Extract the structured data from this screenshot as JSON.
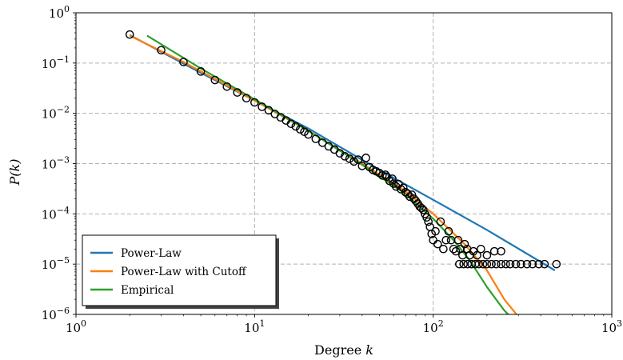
{
  "chart_data": {
    "type": "scatter",
    "xlabel": "Degree",
    "xlabel_var": "k",
    "ylabel": "P(k)",
    "x_scale": "log",
    "y_scale": "log",
    "xlim": [
      1,
      1000
    ],
    "ylim": [
      1e-06,
      1
    ],
    "grid": true,
    "legend_position": "bottom-left",
    "x_ticks": [
      {
        "value": 1,
        "base": "10",
        "exp": "0"
      },
      {
        "value": 10,
        "base": "10",
        "exp": "1"
      },
      {
        "value": 100,
        "base": "10",
        "exp": "2"
      },
      {
        "value": 1000,
        "base": "10",
        "exp": "3"
      }
    ],
    "y_ticks": [
      {
        "value": 1,
        "base": "10",
        "exp": "0"
      },
      {
        "value": 0.1,
        "base": "10",
        "exp": "−1"
      },
      {
        "value": 0.01,
        "base": "10",
        "exp": "−2"
      },
      {
        "value": 0.001,
        "base": "10",
        "exp": "−3"
      },
      {
        "value": 0.0001,
        "base": "10",
        "exp": "−4"
      },
      {
        "value": 1e-05,
        "base": "10",
        "exp": "−5"
      },
      {
        "value": 1e-06,
        "base": "10",
        "exp": "−6"
      }
    ],
    "scatter": [
      [
        2,
        0.37
      ],
      [
        3,
        0.18
      ],
      [
        4,
        0.105
      ],
      [
        5,
        0.068
      ],
      [
        6,
        0.046
      ],
      [
        7,
        0.034
      ],
      [
        8,
        0.026
      ],
      [
        9,
        0.02
      ],
      [
        10,
        0.0165
      ],
      [
        11,
        0.0135
      ],
      [
        12,
        0.0115
      ],
      [
        13,
        0.0097
      ],
      [
        14,
        0.0083
      ],
      [
        15,
        0.0072
      ],
      [
        16,
        0.0062
      ],
      [
        17,
        0.0055
      ],
      [
        18,
        0.0048
      ],
      [
        19,
        0.0043
      ],
      [
        20,
        0.0038
      ],
      [
        22,
        0.0031
      ],
      [
        24,
        0.0026
      ],
      [
        26,
        0.0022
      ],
      [
        28,
        0.0019
      ],
      [
        30,
        0.0016
      ],
      [
        32,
        0.0014
      ],
      [
        34,
        0.00125
      ],
      [
        36,
        0.0011
      ],
      [
        38,
        0.0012
      ],
      [
        40,
        0.0009
      ],
      [
        42,
        0.0013
      ],
      [
        44,
        0.00085
      ],
      [
        46,
        0.00075
      ],
      [
        48,
        0.0007
      ],
      [
        50,
        0.00065
      ],
      [
        52,
        0.00058
      ],
      [
        54,
        0.0006
      ],
      [
        55,
        0.00055
      ],
      [
        57,
        0.00045
      ],
      [
        59,
        0.0005
      ],
      [
        60,
        0.0004
      ],
      [
        62,
        0.00035
      ],
      [
        64,
        0.00039
      ],
      [
        66,
        0.00031
      ],
      [
        68,
        0.00033
      ],
      [
        70,
        0.00027
      ],
      [
        72,
        0.00025
      ],
      [
        74,
        0.00022
      ],
      [
        76,
        0.00024
      ],
      [
        78,
        0.0002
      ],
      [
        80,
        0.00018
      ],
      [
        82,
        0.00016
      ],
      [
        84,
        0.00014
      ],
      [
        86,
        0.00013
      ],
      [
        88,
        0.00012
      ],
      [
        90,
        0.0001
      ],
      [
        92,
        8.5e-05
      ],
      [
        94,
        7e-05
      ],
      [
        96,
        5.5e-05
      ],
      [
        98,
        4e-05
      ],
      [
        100,
        3e-05
      ],
      [
        103,
        4.5e-05
      ],
      [
        106,
        2.5e-05
      ],
      [
        110,
        7e-05
      ],
      [
        114,
        2e-05
      ],
      [
        118,
        3e-05
      ],
      [
        122,
        4.5e-05
      ],
      [
        126,
        3e-05
      ],
      [
        130,
        2e-05
      ],
      [
        134,
        1.8e-05
      ],
      [
        138,
        3e-05
      ],
      [
        142,
        2e-05
      ],
      [
        146,
        1.5e-05
      ],
      [
        150,
        2.5e-05
      ],
      [
        155,
        2e-05
      ],
      [
        160,
        1.5e-05
      ],
      [
        168,
        1.8e-05
      ],
      [
        176,
        1.5e-05
      ],
      [
        185,
        2e-05
      ],
      [
        200,
        1.5e-05
      ],
      [
        220,
        1.8e-05
      ],
      [
        240,
        1.8e-05
      ],
      [
        140,
        1e-05
      ],
      [
        148,
        1e-05
      ],
      [
        156,
        1e-05
      ],
      [
        164,
        1e-05
      ],
      [
        172,
        1e-05
      ],
      [
        180,
        1e-05
      ],
      [
        190,
        1e-05
      ],
      [
        200,
        1e-05
      ],
      [
        212,
        1e-05
      ],
      [
        225,
        1e-05
      ],
      [
        240,
        1e-05
      ],
      [
        255,
        1e-05
      ],
      [
        270,
        1e-05
      ],
      [
        290,
        1e-05
      ],
      [
        310,
        1e-05
      ],
      [
        335,
        1e-05
      ],
      [
        360,
        1e-05
      ],
      [
        390,
        1e-05
      ],
      [
        420,
        1e-05
      ],
      [
        490,
        1e-05
      ]
    ],
    "series": [
      {
        "name": "Power-Law",
        "color": "#1f77b4",
        "points": [
          [
            2,
            0.36
          ],
          [
            5,
            0.064
          ],
          [
            10,
            0.018
          ],
          [
            20,
            0.005
          ],
          [
            50,
            0.00075
          ],
          [
            100,
            0.00019
          ],
          [
            200,
            4.8e-05
          ],
          [
            480,
            7.5e-06
          ]
        ]
      },
      {
        "name": "Power-Law with Cutoff",
        "color": "#ff7f0e",
        "points": [
          [
            2,
            0.35
          ],
          [
            4,
            0.105
          ],
          [
            10,
            0.018
          ],
          [
            20,
            0.0045
          ],
          [
            40,
            0.001
          ],
          [
            70,
            0.00028
          ],
          [
            100,
            0.0001
          ],
          [
            150,
            2.5e-05
          ],
          [
            200,
            7.5e-06
          ],
          [
            250,
            2e-06
          ],
          [
            300,
            9e-07
          ]
        ]
      },
      {
        "name": "Empirical",
        "color": "#2ca02c",
        "points": [
          [
            2.5,
            0.35
          ],
          [
            5,
            0.078
          ],
          [
            10,
            0.019
          ],
          [
            20,
            0.0045
          ],
          [
            40,
            0.00095
          ],
          [
            70,
            0.00025
          ],
          [
            100,
            8e-05
          ],
          [
            130,
            3e-05
          ],
          [
            160,
            1.2e-05
          ],
          [
            200,
            3.5e-06
          ],
          [
            250,
            1.2e-06
          ],
          [
            280,
            8e-07
          ]
        ]
      }
    ]
  }
}
